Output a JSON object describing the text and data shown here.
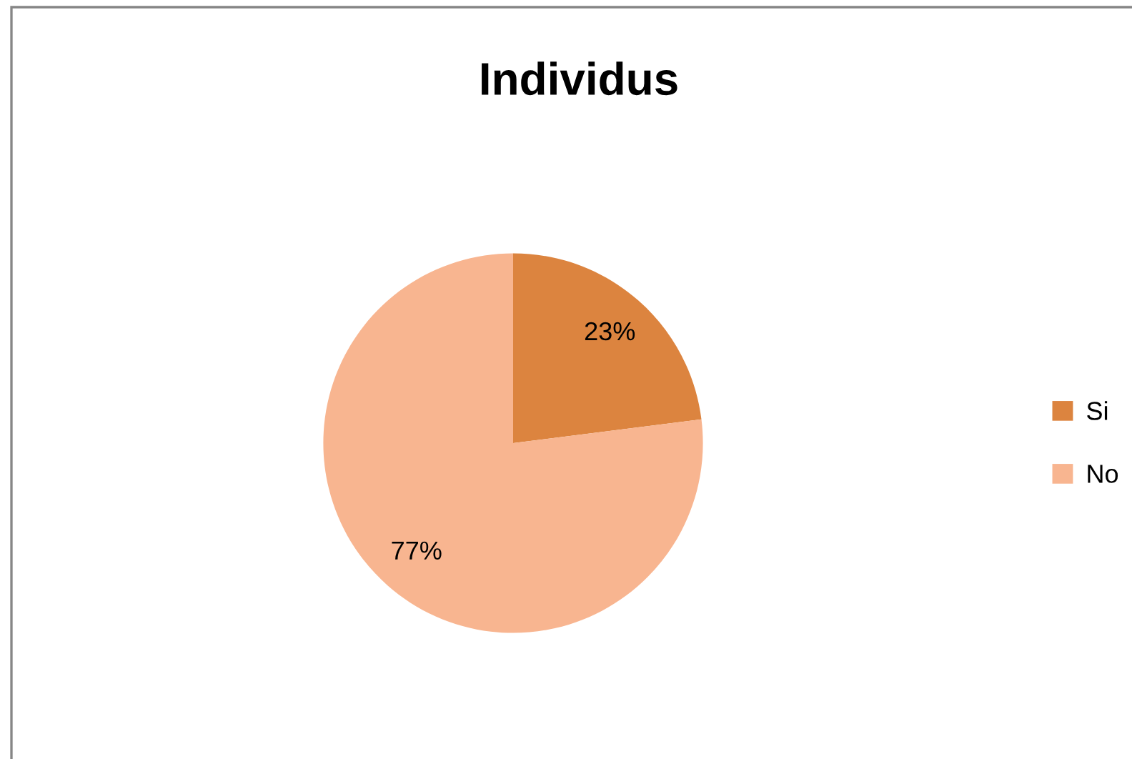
{
  "chart_data": {
    "type": "pie",
    "title": "Individus",
    "categories": [
      "Si",
      "No"
    ],
    "values": [
      23,
      77
    ],
    "colors": [
      "#dc843f",
      "#f8b590"
    ],
    "value_labels": [
      "23%",
      "77%"
    ],
    "legend": "right"
  }
}
